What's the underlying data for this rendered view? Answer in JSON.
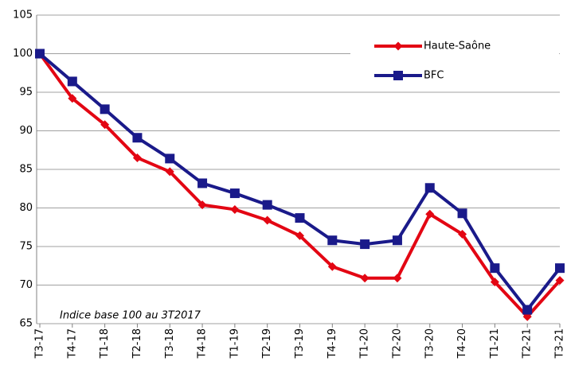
{
  "chart_data": {
    "type": "line",
    "annotation": "Indice base 100 au 3T2017",
    "categories": [
      "T3-17",
      "T4-17",
      "T1-18",
      "T2-18",
      "T3-18",
      "T4-18",
      "T1-19",
      "T2-19",
      "T3-19",
      "T4-19",
      "T1-20",
      "T2-20",
      "T3-20",
      "T4-20",
      "T1-21",
      "T2-21",
      "T3-21"
    ],
    "series": [
      {
        "name": "Haute-Saône",
        "color": "#e30613",
        "marker": "diamond",
        "values": [
          100,
          94.2,
          90.8,
          86.5,
          84.7,
          80.4,
          79.8,
          78.4,
          76.4,
          72.4,
          70.9,
          70.9,
          79.2,
          76.6,
          70.4,
          65.9,
          70.6
        ]
      },
      {
        "name": "BFC",
        "color": "#1a1a8a",
        "marker": "square",
        "values": [
          100,
          96.4,
          92.8,
          89.1,
          86.4,
          83.2,
          81.9,
          80.4,
          78.7,
          75.8,
          75.3,
          75.8,
          82.6,
          79.3,
          72.2,
          66.8,
          72.2
        ]
      }
    ],
    "ylim": [
      65,
      105
    ],
    "yticks": [
      65,
      70,
      75,
      80,
      85,
      90,
      95,
      100,
      105
    ],
    "grid": true,
    "legend": "upper right"
  }
}
